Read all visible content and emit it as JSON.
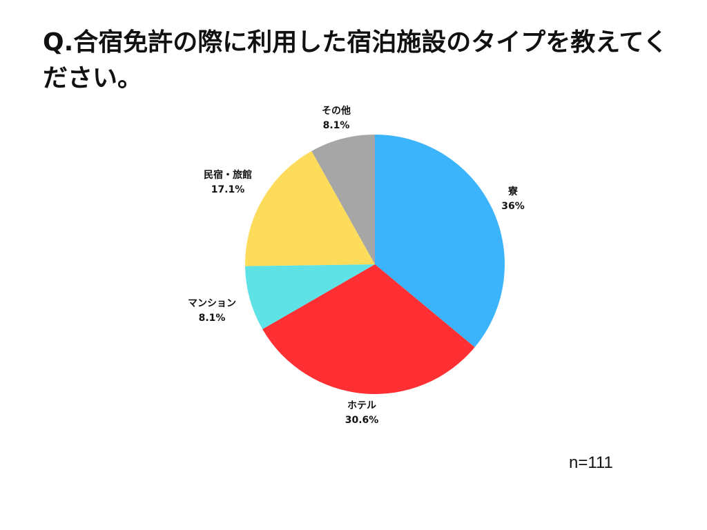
{
  "title": "Q.合宿免許の際に利用した宿泊施設のタイプを教えてください。",
  "sample_size": "n=111",
  "chart_data": {
    "type": "pie",
    "title": "Q.合宿免許の際に利用した宿泊施設のタイプを教えてください。",
    "categories": [
      "寮",
      "ホテル",
      "マンション",
      "民宿・旅館",
      "その他"
    ],
    "values": [
      36,
      30.6,
      8.1,
      17.1,
      8.1
    ],
    "value_labels": [
      "36%",
      "30.6%",
      "8.1%",
      "17.1%",
      "8.1%"
    ],
    "colors": [
      "#3bb4fc",
      "#fe3033",
      "#5ee2e6",
      "#fddc5c",
      "#a6a6a6"
    ],
    "start_angle": "12 o'clock, clockwise",
    "annotation": "n=111",
    "legend": "none (labels outside slices)"
  },
  "labels": [
    {
      "name": "寮",
      "value": "36%"
    },
    {
      "name": "ホテル",
      "value": "30.6%"
    },
    {
      "name": "マンション",
      "value": "8.1%"
    },
    {
      "name": "民宿・旅館",
      "value": "17.1%"
    },
    {
      "name": "その他",
      "value": "8.1%"
    }
  ]
}
